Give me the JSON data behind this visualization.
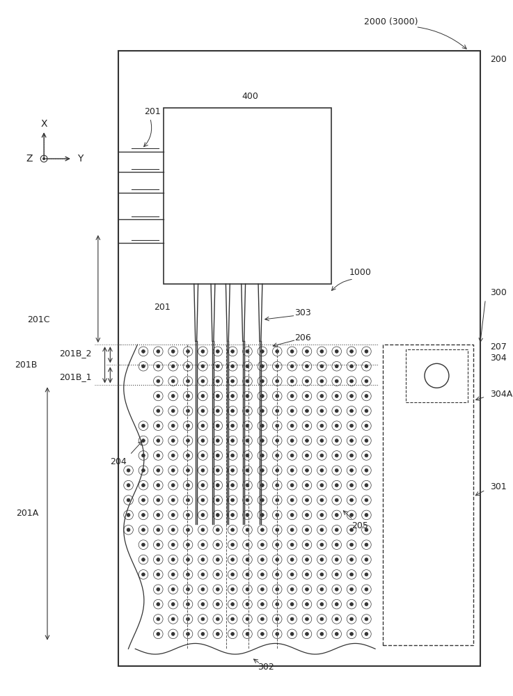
{
  "bg_color": "#ffffff",
  "line_color": "#333333",
  "fig_width": 7.37,
  "fig_height": 10.0,
  "labels": {
    "2000_3000": "2000 (3000)",
    "200": "200",
    "400": "400",
    "201_top": "201",
    "201_mid": "201",
    "201A": "201A",
    "201B": "201B",
    "201B_1": "201B_1",
    "201B_2": "201B_2",
    "201C": "201C",
    "204": "204",
    "205": "205",
    "206": "206",
    "207": "207",
    "300": "300",
    "301": "301",
    "302": "302",
    "303": "303",
    "304": "304",
    "304A": "304A",
    "1000": "1000",
    "X": "X",
    "Y": "Y",
    "Z": "Z"
  }
}
